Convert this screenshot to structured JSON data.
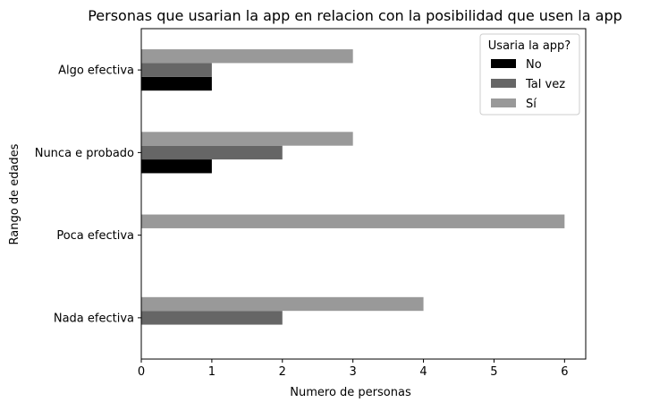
{
  "chart_data": {
    "type": "bar",
    "orientation": "horizontal",
    "title": "Personas que usarian la app en relacion con la posibilidad que usen la app",
    "xlabel": "Numero de personas",
    "ylabel": "Rango de edades",
    "categories": [
      "Nada efectiva",
      "Poca efectiva",
      "Nunca e probado",
      "Algo efectiva"
    ],
    "series": [
      {
        "name": "No",
        "color": "#000000",
        "values": [
          0,
          0,
          1,
          1
        ]
      },
      {
        "name": "Tal vez",
        "color": "#666666",
        "values": [
          2,
          0,
          2,
          1
        ]
      },
      {
        "name": "Sí",
        "color": "#999999",
        "values": [
          4,
          6,
          3,
          3
        ]
      }
    ],
    "xlim": [
      0,
      6.3
    ],
    "xticks": [
      "0",
      "1",
      "2",
      "3",
      "4",
      "5",
      "6"
    ],
    "grid": false,
    "legend": {
      "title": "Usaria la app?",
      "position": "top-right"
    }
  }
}
